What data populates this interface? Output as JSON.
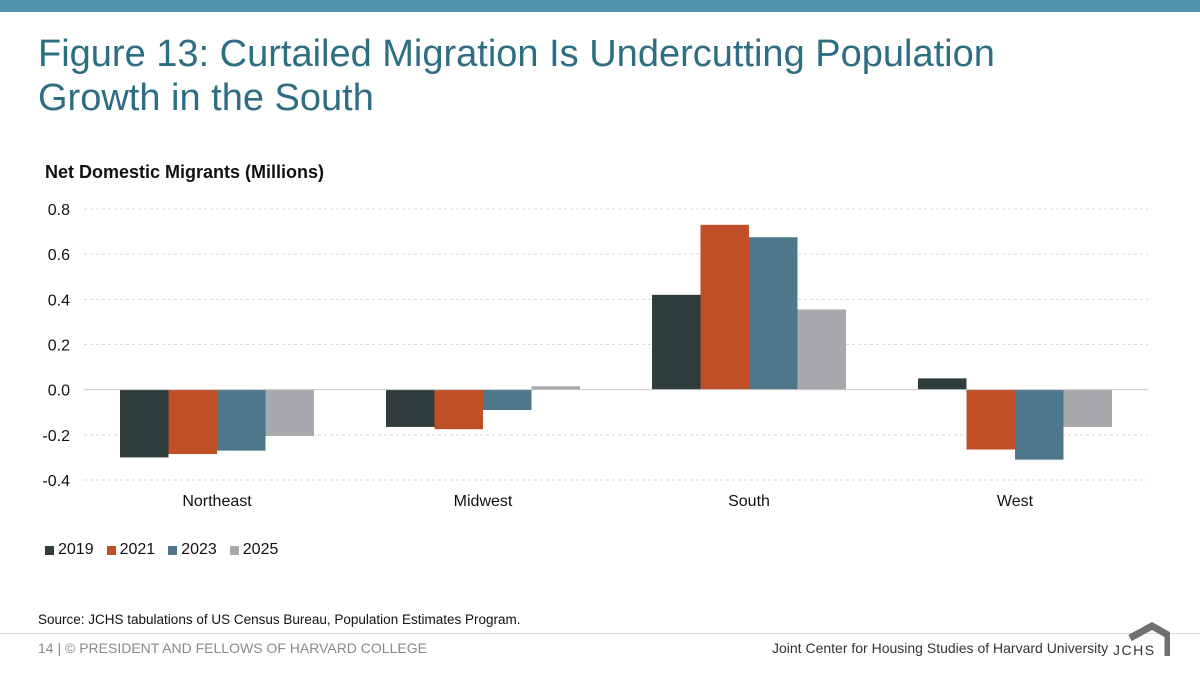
{
  "title_lines": [
    "Figure 13: Curtailed Migration Is Undercutting Population",
    "Growth in the South"
  ],
  "colors": {
    "2019": "#2f3d3c",
    "2021": "#c04f27",
    "2023": "#4f778c",
    "2025": "#a7a9ac",
    "title": "#2e6e83",
    "top_bar": "#5193ab"
  },
  "chart_data": {
    "type": "bar",
    "ylabel": "Net Domestic Migrants (Millions)",
    "categories": [
      "Northeast",
      "Midwest",
      "South",
      "West"
    ],
    "ylim": [
      -0.4,
      0.8
    ],
    "yticks": [
      0.8,
      0.6,
      0.4,
      0.2,
      0.0,
      -0.2,
      -0.4
    ],
    "ytick_labels": [
      "0.8",
      "0.6",
      "0.4",
      "0.2",
      "0.0",
      "-0.2",
      "-0.4"
    ],
    "grid": true,
    "legend_position": "bottom-left",
    "series": [
      {
        "name": "2019",
        "values": [
          -0.3,
          -0.165,
          0.42,
          0.05
        ]
      },
      {
        "name": "2021",
        "values": [
          -0.285,
          -0.175,
          0.73,
          -0.265
        ]
      },
      {
        "name": "2023",
        "values": [
          -0.27,
          -0.09,
          0.675,
          -0.31
        ]
      },
      {
        "name": "2025",
        "values": [
          -0.205,
          0.015,
          0.355,
          -0.165
        ]
      }
    ]
  },
  "source": "Source: JCHS tabulations of US Census Bureau, Population Estimates Program.",
  "footer": {
    "left": "14 | © PRESIDENT AND FELLOWS OF HARVARD COLLEGE",
    "right": "Joint Center for Housing Studies of Harvard University",
    "logo_text": "JCHS"
  }
}
